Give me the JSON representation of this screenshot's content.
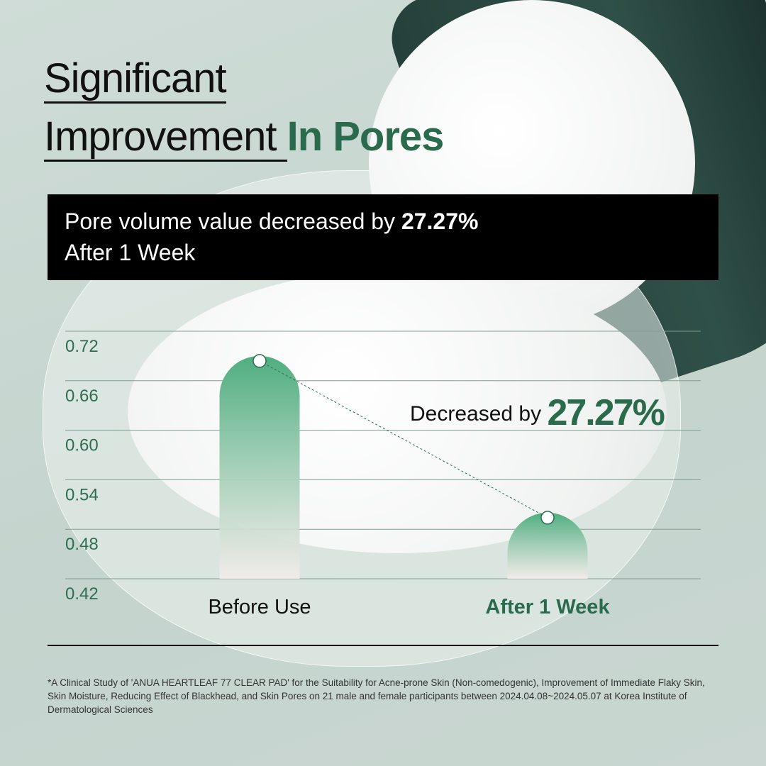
{
  "title": {
    "line1": "Significant",
    "line2_plain": "Improvement ",
    "line2_accent": "In Pores"
  },
  "banner": {
    "text": "Pore volume value decreased by ",
    "value": "27.27%",
    "line2": "After 1 Week"
  },
  "callout": {
    "label": "Decreased by ",
    "value": "27.27%"
  },
  "colors": {
    "accent": "#2b6b4d",
    "bar": "#4fae80",
    "banner_bg": "#000000"
  },
  "chart_data": {
    "type": "bar",
    "categories": [
      "Before Use",
      "After 1 Week"
    ],
    "values": [
      0.69,
      0.5
    ],
    "ylim": [
      0.42,
      0.72
    ],
    "yticks": [
      "0.72",
      "0.66",
      "0.60",
      "0.54",
      "0.48",
      "0.42"
    ],
    "grid": true,
    "connector": "dashed line between bar tops",
    "annotation": "Decreased by 27.27%"
  },
  "footnote": "*A Clinical Study of 'ANUA HEARTLEAF 77 CLEAR PAD' for the Suitability for Acne-prone Skin (Non-comedogenic), Improvement of Immediate Flaky Skin, Skin Moisture, Reducing Effect of Blackhead, and Skin Pores on 21 male and female participants between 2024.04.08~2024.05.07 at Korea Institute of Dermatological Sciences"
}
